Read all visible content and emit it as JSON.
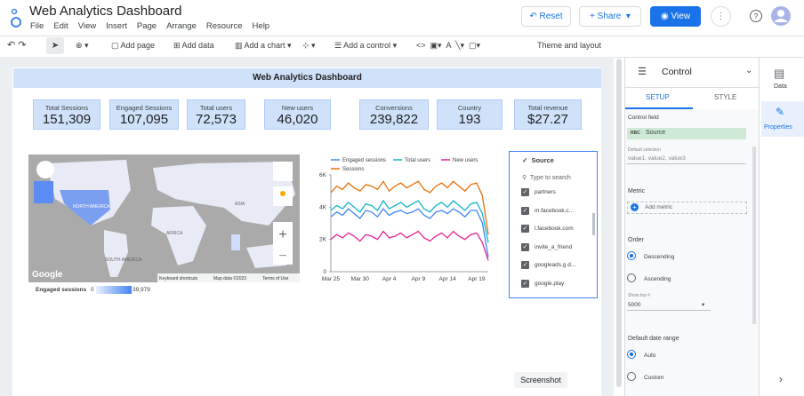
{
  "app": {
    "title": "Web Analytics Dashboard",
    "menu": [
      "File",
      "Edit",
      "View",
      "Insert",
      "Page",
      "Arrange",
      "Resource",
      "Help"
    ],
    "buttons": {
      "reset": "Reset",
      "share": "Share",
      "view": "View"
    }
  },
  "toolbar": [
    "Add page",
    "Add data",
    "Add a chart",
    "Add a control",
    "Theme and layout"
  ],
  "report": {
    "title": "Web Analytics Dashboard",
    "scorecards": [
      {
        "label": "Total Sessions",
        "value": "151,309"
      },
      {
        "label": "Engaged Sessions",
        "value": "107,095"
      },
      {
        "label": "Total users",
        "value": "72,573"
      },
      {
        "label": "New users",
        "value": "46,020"
      },
      {
        "label": "Conversions",
        "value": "239,822"
      },
      {
        "label": "Country",
        "value": "193"
      },
      {
        "label": "Total revenue",
        "value": "$27.27"
      }
    ],
    "map": {
      "regions": [
        "NORTH AMERICA",
        "SOUTH AMERICA",
        "AFRICA",
        "ASIA"
      ],
      "brand": "Google",
      "footer": [
        "Keyboard shortcuts",
        "Map data ©2023",
        "Terms of Use"
      ],
      "legend_title": "Engaged sessions",
      "legend_min": "0",
      "legend_max": "39,979"
    },
    "filter": {
      "title": "Source",
      "search": "Type to search",
      "items": [
        "partners",
        "m.facebook.c...",
        "l.facebook.com",
        "invite_a_friend",
        "googleads.g.d...",
        "google.play"
      ]
    }
  },
  "chart_data": {
    "type": "line",
    "categories": [
      "Mar 25",
      null,
      null,
      null,
      null,
      "Mar 30",
      null,
      null,
      null,
      null,
      "Apr 4",
      null,
      null,
      null,
      null,
      "Apr 9",
      null,
      null,
      null,
      null,
      "Apr 14",
      null,
      null,
      null,
      null,
      "Apr 19",
      null,
      null
    ],
    "series": [
      {
        "name": "Engaged sessions",
        "color": "#4285f4",
        "values": [
          3400,
          3700,
          3500,
          3900,
          3600,
          3300,
          3800,
          3700,
          3400,
          3900,
          3500,
          3700,
          3800,
          3600,
          3700,
          3900,
          3500,
          3300,
          3700,
          3800,
          3600,
          3900,
          3700,
          3400,
          3800,
          3800,
          3000,
          900
        ]
      },
      {
        "name": "Total users",
        "color": "#12b5cb",
        "values": [
          3800,
          4100,
          3900,
          4300,
          4000,
          3700,
          4200,
          4100,
          3800,
          4400,
          3900,
          4100,
          4300,
          4000,
          4200,
          4400,
          3900,
          3700,
          4100,
          4300,
          4000,
          4400,
          4100,
          3800,
          4200,
          4300,
          3600,
          1800
        ]
      },
      {
        "name": "New users",
        "color": "#e52592",
        "values": [
          2000,
          2300,
          2100,
          2400,
          2200,
          1900,
          2300,
          2200,
          2000,
          2500,
          2100,
          2200,
          2400,
          2100,
          2300,
          2500,
          2100,
          1900,
          2200,
          2400,
          2100,
          2500,
          2200,
          2000,
          2300,
          2400,
          1800,
          700
        ]
      },
      {
        "name": "Sessions",
        "color": "#e8710a",
        "values": [
          4900,
          5300,
          5100,
          5500,
          5200,
          5000,
          5400,
          5300,
          5100,
          5600,
          5000,
          5300,
          5500,
          5200,
          5400,
          5600,
          5100,
          4900,
          5300,
          5500,
          5200,
          5600,
          5300,
          5000,
          5400,
          5500,
          4700,
          2300
        ]
      }
    ],
    "ylim": [
      0,
      6000
    ],
    "yticks": [
      0,
      {
        "value": 2000,
        "label": "2K"
      },
      {
        "value": 4000,
        "label": "4K"
      },
      {
        "value": 6000,
        "label": "6K"
      }
    ],
    "grid": false,
    "legend": "top"
  },
  "panel": {
    "title": "Control",
    "tabs": [
      "SETUP",
      "STYLE"
    ],
    "control_field": "Control field",
    "field": "Source",
    "default_selection": "Default selection",
    "default_value": "value1, value2, value3",
    "metric": "Metric",
    "add_metric": "Add metric",
    "order": "Order",
    "descending": "Descending",
    "ascending": "Ascending",
    "show_top": "Show top #",
    "top_value": "5000",
    "date_range": "Default date range",
    "auto": "Auto",
    "custom": "Custom"
  },
  "sidebar": [
    "Data",
    "Properties"
  ],
  "tooltip": "Screenshot"
}
